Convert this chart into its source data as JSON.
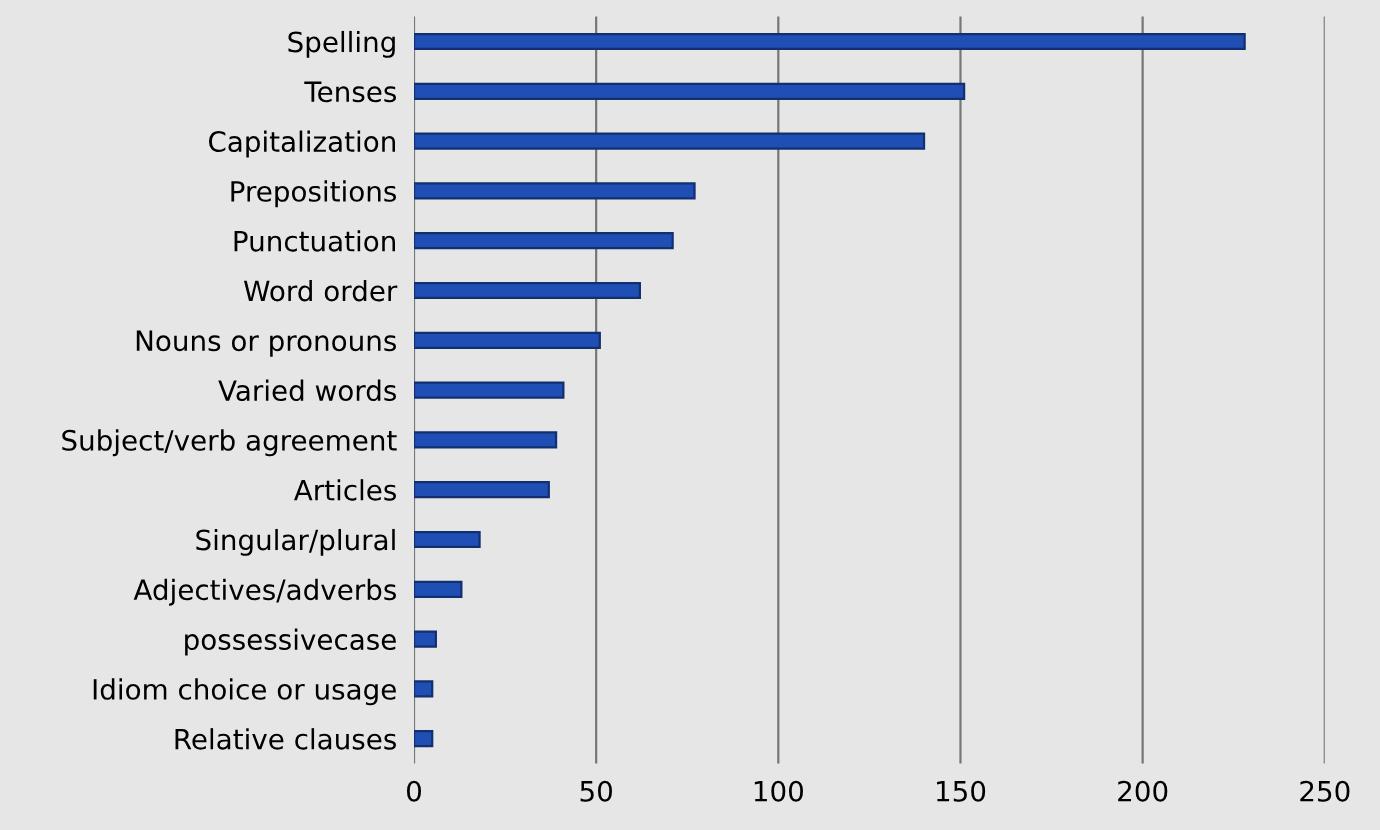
{
  "chart_data": {
    "type": "bar",
    "orientation": "horizontal",
    "categories": [
      "Spelling",
      "Tenses",
      "Capitalization",
      "Prepositions",
      "Punctuation",
      "Word order",
      "Nouns or pronouns",
      "Varied words",
      "Subject/verb agreement",
      "Articles",
      "Singular/plural",
      "Adjectives/adverbs",
      "possessivecase",
      "Idiom choice or usage",
      "Relative clauses"
    ],
    "values": [
      228,
      151,
      140,
      77,
      71,
      62,
      51,
      41,
      39,
      37,
      18,
      13,
      6,
      5,
      5
    ],
    "color": "#1f4fb4",
    "xlim": [
      0,
      250
    ],
    "xticks": [
      0,
      50,
      100,
      150,
      200,
      250
    ],
    "grid": "x"
  }
}
